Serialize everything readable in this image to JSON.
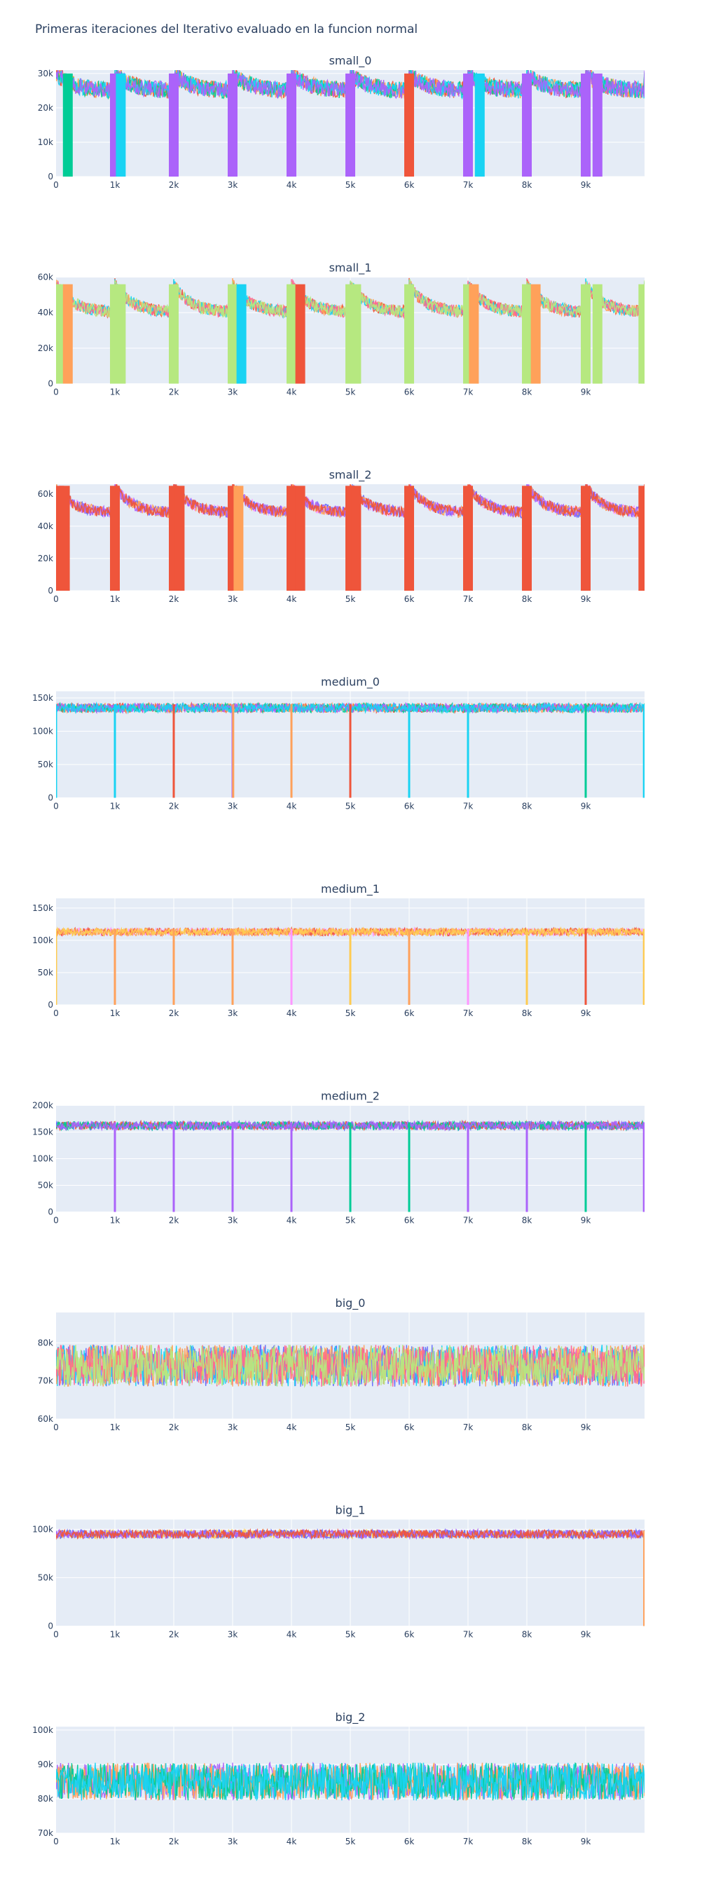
{
  "page": {
    "title": "Primeras iteraciones del Iterativo evaluado en la funcion normal"
  },
  "palette": [
    "#636efa",
    "#ef553b",
    "#00cc96",
    "#ab63fa",
    "#ffa15a",
    "#19d3f3",
    "#ff6692",
    "#b6e880",
    "#ff97ff",
    "#fecb52"
  ],
  "chart_data": [
    {
      "type": "line",
      "title": "small_0",
      "xlim": [
        0,
        10000
      ],
      "ylim": [
        0,
        31000
      ],
      "x_ticks": [
        0,
        1000,
        2000,
        3000,
        4000,
        5000,
        6000,
        7000,
        8000,
        9000
      ],
      "x_tick_labels": [
        "0",
        "1k",
        "2k",
        "3k",
        "4k",
        "5k",
        "6k",
        "7k",
        "8k",
        "9k"
      ],
      "y_ticks": [
        0,
        10000,
        20000,
        30000
      ],
      "y_tick_labels": [
        "0",
        "10k",
        "20k",
        "30k"
      ],
      "pattern": "reset",
      "baseline": 25000,
      "peak": 30000,
      "noise": 2500,
      "series_colors": [
        "#ef553b",
        "#ffa15a",
        "#00cc96",
        "#19d3f3",
        "#ab63fa"
      ],
      "zero_dips": [
        {
          "x": 200,
          "color": "#00cc96"
        },
        {
          "x": 1000,
          "color": "#ab63fa"
        },
        {
          "x": 1100,
          "color": "#19d3f3"
        },
        {
          "x": 2000,
          "color": "#ab63fa"
        },
        {
          "x": 3000,
          "color": "#ab63fa"
        },
        {
          "x": 4000,
          "color": "#ab63fa"
        },
        {
          "x": 5000,
          "color": "#ab63fa"
        },
        {
          "x": 6000,
          "color": "#ef553b"
        },
        {
          "x": 7000,
          "color": "#ab63fa"
        },
        {
          "x": 7200,
          "color": "#19d3f3"
        },
        {
          "x": 8000,
          "color": "#ab63fa"
        },
        {
          "x": 9000,
          "color": "#ab63fa"
        },
        {
          "x": 9200,
          "color": "#ab63fa"
        }
      ]
    },
    {
      "type": "line",
      "title": "small_1",
      "xlim": [
        0,
        10000
      ],
      "ylim": [
        0,
        60000
      ],
      "x_ticks": [
        0,
        1000,
        2000,
        3000,
        4000,
        5000,
        6000,
        7000,
        8000,
        9000
      ],
      "x_tick_labels": [
        "0",
        "1k",
        "2k",
        "3k",
        "4k",
        "5k",
        "6k",
        "7k",
        "8k",
        "9k"
      ],
      "y_ticks": [
        0,
        20000,
        40000,
        60000
      ],
      "y_tick_labels": [
        "0",
        "20k",
        "40k",
        "60k"
      ],
      "pattern": "reset",
      "baseline": 40000,
      "peak": 56000,
      "noise": 3500,
      "series_colors": [
        "#ef553b",
        "#ffa15a",
        "#19d3f3",
        "#ff6692",
        "#b6e880"
      ],
      "zero_dips": [
        {
          "x": 50,
          "color": "#b6e880"
        },
        {
          "x": 200,
          "color": "#ffa15a"
        },
        {
          "x": 1000,
          "color": "#b6e880"
        },
        {
          "x": 1100,
          "color": "#b6e880"
        },
        {
          "x": 2000,
          "color": "#b6e880"
        },
        {
          "x": 3000,
          "color": "#b6e880"
        },
        {
          "x": 3150,
          "color": "#19d3f3"
        },
        {
          "x": 4000,
          "color": "#b6e880"
        },
        {
          "x": 4150,
          "color": "#ef553b"
        },
        {
          "x": 5000,
          "color": "#b6e880"
        },
        {
          "x": 5100,
          "color": "#b6e880"
        },
        {
          "x": 6000,
          "color": "#b6e880"
        },
        {
          "x": 7000,
          "color": "#b6e880"
        },
        {
          "x": 7100,
          "color": "#ffa15a"
        },
        {
          "x": 8000,
          "color": "#b6e880"
        },
        {
          "x": 8150,
          "color": "#ffa15a"
        },
        {
          "x": 9000,
          "color": "#b6e880"
        },
        {
          "x": 9200,
          "color": "#b6e880"
        },
        {
          "x": 9980,
          "color": "#b6e880"
        }
      ]
    },
    {
      "type": "line",
      "title": "small_2",
      "xlim": [
        0,
        10000
      ],
      "ylim": [
        0,
        66000
      ],
      "x_ticks": [
        0,
        1000,
        2000,
        3000,
        4000,
        5000,
        6000,
        7000,
        8000,
        9000
      ],
      "x_tick_labels": [
        "0",
        "1k",
        "2k",
        "3k",
        "4k",
        "5k",
        "6k",
        "7k",
        "8k",
        "9k"
      ],
      "y_ticks": [
        0,
        20000,
        40000,
        60000
      ],
      "y_tick_labels": [
        "0",
        "20k",
        "40k",
        "60k"
      ],
      "pattern": "reset",
      "baseline": 48000,
      "peak": 65000,
      "noise": 3500,
      "series_colors": [
        "#ff97ff",
        "#636efa",
        "#ffa15a",
        "#ab63fa",
        "#ef553b"
      ],
      "zero_dips": [
        {
          "x": 50,
          "color": "#ef553b"
        },
        {
          "x": 150,
          "color": "#ef553b"
        },
        {
          "x": 1000,
          "color": "#ef553b"
        },
        {
          "x": 2000,
          "color": "#ef553b"
        },
        {
          "x": 2100,
          "color": "#ef553b"
        },
        {
          "x": 3000,
          "color": "#ef553b"
        },
        {
          "x": 3100,
          "color": "#ffa15a"
        },
        {
          "x": 4000,
          "color": "#ef553b"
        },
        {
          "x": 4150,
          "color": "#ef553b"
        },
        {
          "x": 5000,
          "color": "#ef553b"
        },
        {
          "x": 5100,
          "color": "#ef553b"
        },
        {
          "x": 6000,
          "color": "#ef553b"
        },
        {
          "x": 7000,
          "color": "#ef553b"
        },
        {
          "x": 8000,
          "color": "#ef553b"
        },
        {
          "x": 9000,
          "color": "#ef553b"
        },
        {
          "x": 9980,
          "color": "#ef553b"
        }
      ]
    },
    {
      "type": "line",
      "title": "medium_0",
      "xlim": [
        0,
        10000
      ],
      "ylim": [
        0,
        160000
      ],
      "x_ticks": [
        0,
        1000,
        2000,
        3000,
        4000,
        5000,
        6000,
        7000,
        8000,
        9000
      ],
      "x_tick_labels": [
        "0",
        "1k",
        "2k",
        "3k",
        "4k",
        "5k",
        "6k",
        "7k",
        "8k",
        "9k"
      ],
      "y_ticks": [
        0,
        50000,
        100000,
        150000
      ],
      "y_tick_labels": [
        "0",
        "50k",
        "100k",
        "150k"
      ],
      "pattern": "flat",
      "baseline": 135000,
      "peak": 158000,
      "noise": 7000,
      "series_colors": [
        "#ef553b",
        "#ffa15a",
        "#00cc96",
        "#ab63fa",
        "#19d3f3"
      ],
      "zero_dips": [
        {
          "x": 0,
          "color": "#19d3f3"
        },
        {
          "x": 1000,
          "color": "#19d3f3"
        },
        {
          "x": 2000,
          "color": "#ef553b"
        },
        {
          "x": 3000,
          "color": "#ab63fa"
        },
        {
          "x": 3010,
          "color": "#ffa15a"
        },
        {
          "x": 4000,
          "color": "#ffa15a"
        },
        {
          "x": 5000,
          "color": "#ef553b"
        },
        {
          "x": 6000,
          "color": "#19d3f3"
        },
        {
          "x": 7000,
          "color": "#19d3f3"
        },
        {
          "x": 9000,
          "color": "#00cc96"
        },
        {
          "x": 9990,
          "color": "#19d3f3"
        }
      ]
    },
    {
      "type": "line",
      "title": "medium_1",
      "xlim": [
        0,
        10000
      ],
      "ylim": [
        0,
        165000
      ],
      "x_ticks": [
        0,
        1000,
        2000,
        3000,
        4000,
        5000,
        6000,
        7000,
        8000,
        9000
      ],
      "x_tick_labels": [
        "0",
        "1k",
        "2k",
        "3k",
        "4k",
        "5k",
        "6k",
        "7k",
        "8k",
        "9k"
      ],
      "y_ticks": [
        0,
        50000,
        100000,
        150000
      ],
      "y_tick_labels": [
        "0",
        "50k",
        "100k",
        "150k"
      ],
      "pattern": "flat",
      "baseline": 113000,
      "peak": 162000,
      "noise": 6000,
      "series_colors": [
        "#ff97ff",
        "#ef553b",
        "#ffa15a",
        "#fecb52"
      ],
      "zero_dips": [
        {
          "x": 0,
          "color": "#fecb52"
        },
        {
          "x": 1000,
          "color": "#ffa15a"
        },
        {
          "x": 2000,
          "color": "#ffa15a"
        },
        {
          "x": 3000,
          "color": "#ffa15a"
        },
        {
          "x": 4000,
          "color": "#ff97ff"
        },
        {
          "x": 5000,
          "color": "#fecb52"
        },
        {
          "x": 6000,
          "color": "#ffa15a"
        },
        {
          "x": 7000,
          "color": "#ff97ff"
        },
        {
          "x": 8000,
          "color": "#fecb52"
        },
        {
          "x": 9000,
          "color": "#ef553b"
        },
        {
          "x": 9990,
          "color": "#fecb52"
        }
      ]
    },
    {
      "type": "line",
      "title": "medium_2",
      "xlim": [
        0,
        10000
      ],
      "ylim": [
        0,
        200000
      ],
      "x_ticks": [
        0,
        1000,
        2000,
        3000,
        4000,
        5000,
        6000,
        7000,
        8000,
        9000
      ],
      "x_tick_labels": [
        "0",
        "1k",
        "2k",
        "3k",
        "4k",
        "5k",
        "6k",
        "7k",
        "8k",
        "9k"
      ],
      "y_ticks": [
        0,
        50000,
        100000,
        150000,
        200000
      ],
      "y_tick_labels": [
        "0",
        "50k",
        "100k",
        "150k",
        "200k"
      ],
      "pattern": "flat",
      "baseline": 162000,
      "peak": 195000,
      "noise": 8000,
      "series_colors": [
        "#636efa",
        "#ef553b",
        "#00cc96",
        "#ab63fa"
      ],
      "zero_dips": [
        {
          "x": 1000,
          "color": "#ab63fa"
        },
        {
          "x": 2000,
          "color": "#ab63fa"
        },
        {
          "x": 3000,
          "color": "#ab63fa"
        },
        {
          "x": 4000,
          "color": "#ab63fa"
        },
        {
          "x": 5000,
          "color": "#00cc96"
        },
        {
          "x": 6000,
          "color": "#00cc96"
        },
        {
          "x": 7000,
          "color": "#ab63fa"
        },
        {
          "x": 8000,
          "color": "#ab63fa"
        },
        {
          "x": 9000,
          "color": "#00cc96"
        },
        {
          "x": 9990,
          "color": "#ab63fa"
        }
      ]
    },
    {
      "type": "line",
      "title": "big_0",
      "xlim": [
        0,
        10000
      ],
      "ylim": [
        60000,
        88000
      ],
      "x_ticks": [
        0,
        1000,
        2000,
        3000,
        4000,
        5000,
        6000,
        7000,
        8000,
        9000
      ],
      "x_tick_labels": [
        "0",
        "1k",
        "2k",
        "3k",
        "4k",
        "5k",
        "6k",
        "7k",
        "8k",
        "9k"
      ],
      "y_ticks": [
        60000,
        70000,
        80000
      ],
      "y_tick_labels": [
        "60k",
        "70k",
        "80k"
      ],
      "pattern": "noise",
      "baseline": 74000,
      "peak": 86000,
      "noise": 5500,
      "series_colors": [
        "#636efa",
        "#19d3f3",
        "#ffa15a",
        "#ff6692",
        "#b6e880"
      ],
      "zero_dips": []
    },
    {
      "type": "line",
      "title": "big_1",
      "xlim": [
        0,
        10000
      ],
      "ylim": [
        0,
        110000
      ],
      "x_ticks": [
        0,
        1000,
        2000,
        3000,
        4000,
        5000,
        6000,
        7000,
        8000,
        9000
      ],
      "x_tick_labels": [
        "0",
        "1k",
        "2k",
        "3k",
        "4k",
        "5k",
        "6k",
        "7k",
        "8k",
        "9k"
      ],
      "y_ticks": [
        0,
        50000,
        100000
      ],
      "y_tick_labels": [
        "0",
        "50k",
        "100k"
      ],
      "pattern": "flat",
      "baseline": 95000,
      "peak": 105000,
      "noise": 4500,
      "series_colors": [
        "#fecb52",
        "#636efa",
        "#ab63fa",
        "#ef553b"
      ],
      "zero_dips": [
        {
          "x": 9995,
          "color": "#ffa15a"
        }
      ]
    },
    {
      "type": "line",
      "title": "big_2",
      "xlim": [
        0,
        10000
      ],
      "ylim": [
        70000,
        101000
      ],
      "x_ticks": [
        0,
        1000,
        2000,
        3000,
        4000,
        5000,
        6000,
        7000,
        8000,
        9000
      ],
      "x_tick_labels": [
        "0",
        "1k",
        "2k",
        "3k",
        "4k",
        "5k",
        "6k",
        "7k",
        "8k",
        "9k"
      ],
      "y_ticks": [
        70000,
        80000,
        90000,
        100000
      ],
      "y_tick_labels": [
        "70k",
        "80k",
        "90k",
        "100k"
      ],
      "pattern": "noise",
      "baseline": 85000,
      "peak": 98000,
      "noise": 5500,
      "series_colors": [
        "#ab63fa",
        "#ffa15a",
        "#00cc96",
        "#19d3f3"
      ],
      "zero_dips": []
    }
  ]
}
